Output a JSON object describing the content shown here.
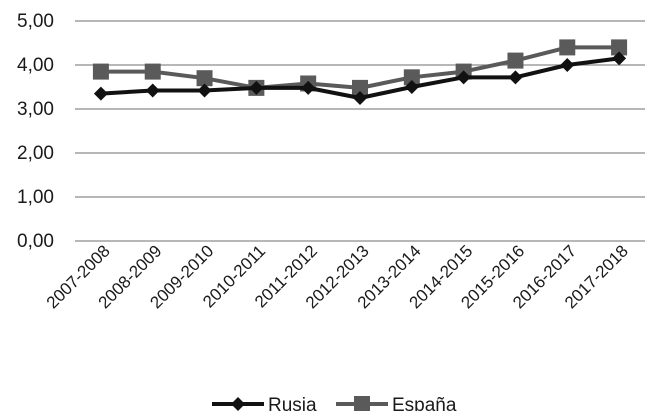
{
  "chart_data": {
    "type": "line",
    "title": "",
    "xlabel": "",
    "ylabel": "",
    "ylim": [
      0,
      5
    ],
    "y_ticks": [
      "0,00",
      "1,00",
      "2,00",
      "3,00",
      "4,00",
      "5,00"
    ],
    "grid": "horizontal",
    "legend_position": "bottom",
    "categories": [
      "2007-2008",
      "2008-2009",
      "2009-2010",
      "2010-2011",
      "2011-2012",
      "2012-2013",
      "2013-2014",
      "2014-2015",
      "2015-2016",
      "2016-2017",
      "2017-2018"
    ],
    "series": [
      {
        "name": "Rusia",
        "marker": "diamond",
        "color": "#111111",
        "values": [
          3.35,
          3.42,
          3.42,
          3.48,
          3.48,
          3.25,
          3.5,
          3.72,
          3.72,
          4.0,
          4.15
        ]
      },
      {
        "name": "España",
        "marker": "square",
        "color": "#5a5a5a",
        "values": [
          3.85,
          3.85,
          3.7,
          3.48,
          3.58,
          3.48,
          3.72,
          3.85,
          4.1,
          4.4,
          4.4
        ]
      }
    ]
  }
}
